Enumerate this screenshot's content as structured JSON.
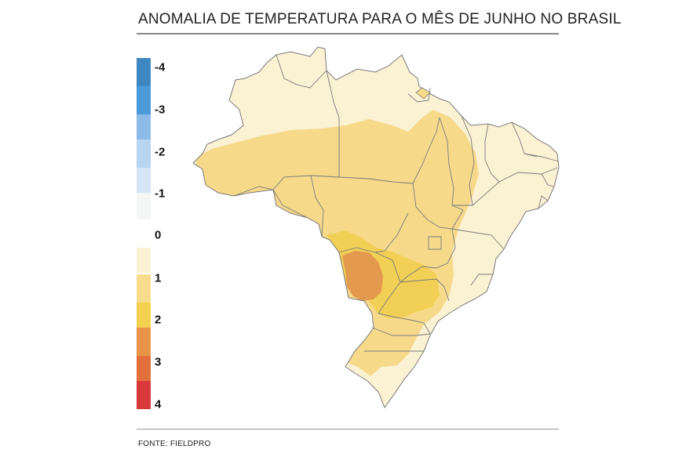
{
  "title": "ANOMALIA DE TEMPERATURA PARA O MÊS DE JUNHO NO BRASIL",
  "source": "FONTE: FIELDPRO",
  "legend": {
    "ticks": [
      "-4",
      "-3",
      "-2",
      "-1",
      "0",
      "1",
      "2",
      "3",
      "4"
    ],
    "swatches": [
      {
        "color": "#3f87c2"
      },
      {
        "color": "#4d9ad8"
      },
      {
        "color": "#8dbbe7"
      },
      {
        "color": "#b8d5f0"
      },
      {
        "color": "#d6e6f6"
      },
      {
        "color": "#f4f5f5"
      },
      {
        "color": "#fbf1d3"
      },
      {
        "color": "#f8dc8e"
      },
      {
        "color": "#f3d04f"
      },
      {
        "color": "#e8954a"
      },
      {
        "color": "#e2703c"
      },
      {
        "color": "#d9393a"
      }
    ]
  },
  "map": {
    "colors": {
      "anomaly_0_1": "#fbf1d3",
      "anomaly_1_2": "#f7d98a",
      "anomaly_2_3": "#f2cf55",
      "anomaly_3_4": "#e39a4e",
      "border": "#7a7a7a"
    }
  }
}
